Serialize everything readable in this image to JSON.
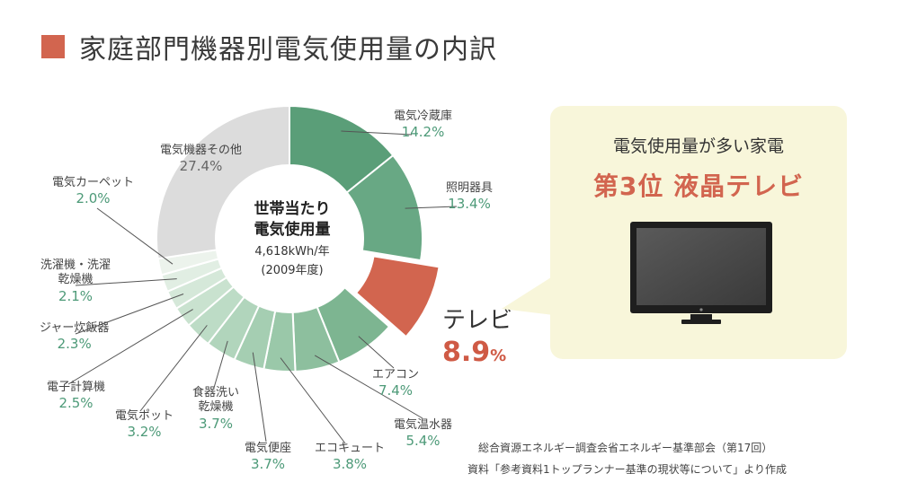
{
  "title": "家庭部門機器別電気使用量の内訳",
  "center": {
    "line1": "世帯当たり",
    "line2": "電気使用量",
    "line3": "4,618kWh/年",
    "line4": "(2009年度)"
  },
  "callout": {
    "line1": "電気使用量が多い家電",
    "line2": "第3位 液晶テレビ"
  },
  "source": {
    "line1": "総合資源エネルギー調査会省エネルギー基準部会（第17回）",
    "line2": "資料「参考資料1トップランナー基準の現状等について」より作成"
  },
  "colors": {
    "title_square": "#d2654f",
    "callout_bg": "#f8f6da",
    "highlight": "#d2654f",
    "percent_text": "#4d9a78"
  },
  "chart_data": {
    "type": "pie",
    "title": "家庭部門機器別電気使用量の内訳",
    "unit": "%",
    "slices": [
      {
        "name": "電気冷蔵庫",
        "value": 14.2,
        "label_pct": "14.2%",
        "color": "#5a9e78"
      },
      {
        "name": "照明器具",
        "value": 13.4,
        "label_pct": "13.4%",
        "color": "#68a884"
      },
      {
        "name": "テレビ",
        "value": 8.9,
        "label_pct": "8.9",
        "pct_unit": "%",
        "color": "#d2654f",
        "highlight": true
      },
      {
        "name": "エアコン",
        "value": 7.4,
        "label_pct": "7.4%",
        "color": "#7db591"
      },
      {
        "name": "電気温水器",
        "value": 5.4,
        "label_pct": "5.4%",
        "color": "#8dbf9e"
      },
      {
        "name": "エコキュート",
        "value": 3.8,
        "label_pct": "3.8%",
        "color": "#9ac8a9"
      },
      {
        "name": "電気便座",
        "value": 3.7,
        "label_pct": "3.7%",
        "color": "#a5ceb2"
      },
      {
        "name": "食器洗い乾燥機",
        "value": 3.7,
        "label_pct": "3.7%",
        "color": "#b1d5bc"
      },
      {
        "name": "電気ポット",
        "value": 3.2,
        "label_pct": "3.2%",
        "color": "#bddcc6"
      },
      {
        "name": "電子計算機",
        "value": 2.5,
        "label_pct": "2.5%",
        "color": "#c9e2cf"
      },
      {
        "name": "ジャー炊飯器",
        "value": 2.3,
        "label_pct": "2.3%",
        "color": "#d5e8d9"
      },
      {
        "name": "洗濯機・洗濯乾燥機",
        "value": 2.1,
        "label_pct": "2.1%",
        "color": "#e1eee3"
      },
      {
        "name": "電気カーペット",
        "value": 2.0,
        "label_pct": "2.0%",
        "color": "#ecf3ec"
      },
      {
        "name": "電気機器その他",
        "value": 27.4,
        "label_pct": "27.4%",
        "color": "#dcdcdc"
      }
    ]
  }
}
